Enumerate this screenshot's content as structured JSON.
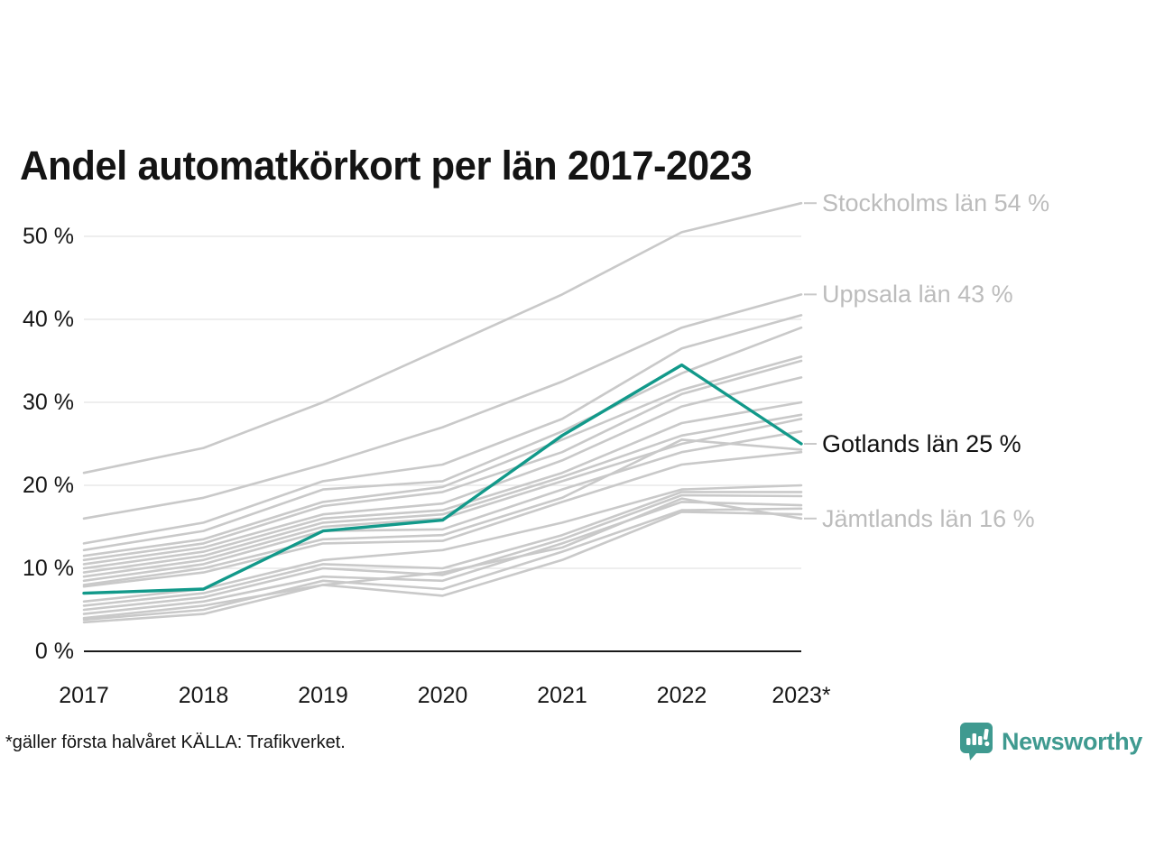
{
  "title": "Andel automatkörkort per län 2017-2023",
  "footer": {
    "note": "*gäller första halvåret KÄLLA: Trafikverket."
  },
  "branding": {
    "logo_text": "Newsworthy",
    "logo_icon": "newsworthy-speech-bubble-barchart-icon",
    "logo_color": "#3f9a90"
  },
  "colors": {
    "highlight_line": "#12998a",
    "gray_line": "#c9c9c9",
    "gridline": "#e8e8e8",
    "axis": "#1a1a1a",
    "annotation_gray": "#bcbcbc",
    "annotation_black": "#111111",
    "connector": "#c9c9c9"
  },
  "chart_data": {
    "type": "line",
    "title": "Andel automatkörkort per län 2017-2023",
    "xlabel": "",
    "ylabel": "",
    "x": [
      2017,
      2018,
      2019,
      2020,
      2021,
      2022,
      2023
    ],
    "x_tick_labels": [
      "2017",
      "2018",
      "2019",
      "2020",
      "2021",
      "2022",
      "2023*"
    ],
    "y_ticks": [
      0,
      10,
      20,
      30,
      40,
      50
    ],
    "y_tick_labels": [
      "0 %",
      "10 %",
      "20 %",
      "30 %",
      "40 %",
      "50 %"
    ],
    "ylim": [
      0,
      57
    ],
    "grid": "horizontal",
    "legend_position": "right-annotations",
    "unit": "%",
    "series": [
      {
        "name": "Stockholms län",
        "highlight": false,
        "values": [
          21.5,
          24.5,
          30,
          36.5,
          43,
          50.5,
          54
        ]
      },
      {
        "name": "Uppsala län",
        "highlight": false,
        "values": [
          16,
          18.5,
          22.5,
          27,
          32.5,
          39,
          43
        ]
      },
      {
        "name": "unlabeled-1",
        "highlight": false,
        "values": [
          13,
          15.5,
          20.5,
          22.5,
          28,
          36.5,
          40.5
        ]
      },
      {
        "name": "unlabeled-2",
        "highlight": false,
        "values": [
          12.2,
          14.5,
          19.5,
          20.5,
          26.5,
          33.5,
          39
        ]
      },
      {
        "name": "unlabeled-3",
        "highlight": false,
        "values": [
          11.5,
          13.5,
          18,
          19.8,
          25.5,
          31.5,
          35.5
        ]
      },
      {
        "name": "unlabeled-4",
        "highlight": false,
        "values": [
          11,
          13,
          17.5,
          19.2,
          24,
          31,
          35
        ]
      },
      {
        "name": "unlabeled-5",
        "highlight": false,
        "values": [
          10.5,
          12.5,
          16.5,
          17.8,
          23,
          29.5,
          33
        ]
      },
      {
        "name": "unlabeled-6",
        "highlight": false,
        "values": [
          10,
          12,
          16,
          17,
          21.5,
          27.5,
          30
        ]
      },
      {
        "name": "unlabeled-7",
        "highlight": false,
        "values": [
          9.5,
          11.5,
          15.5,
          16.5,
          21,
          26,
          28.5
        ]
      },
      {
        "name": "unlabeled-8",
        "highlight": false,
        "values": [
          9,
          11,
          15,
          16,
          20.5,
          25,
          28
        ]
      },
      {
        "name": "unlabeled-9",
        "highlight": false,
        "values": [
          8.5,
          10.5,
          14.5,
          14.7,
          19.5,
          24,
          26.5
        ]
      },
      {
        "name": "unlabeled-10",
        "highlight": false,
        "values": [
          8,
          10,
          13.5,
          14,
          18.5,
          25.5,
          24.3
        ]
      },
      {
        "name": "unlabeled-11",
        "highlight": false,
        "values": [
          7.8,
          9.5,
          13,
          13.3,
          18,
          22.5,
          24
        ]
      },
      {
        "name": "unlabeled-12",
        "highlight": false,
        "values": [
          6,
          7.5,
          11,
          12.2,
          15.5,
          19.5,
          20
        ]
      },
      {
        "name": "unlabeled-13",
        "highlight": false,
        "values": [
          5.5,
          7,
          10.5,
          10,
          14,
          19.2,
          19.2
        ]
      },
      {
        "name": "unlabeled-14",
        "highlight": false,
        "values": [
          5,
          6.5,
          10,
          9.2,
          13.5,
          18.8,
          18.7
        ]
      },
      {
        "name": "unlabeled-15",
        "highlight": false,
        "values": [
          4.5,
          6,
          9,
          8.5,
          13,
          18,
          17.6
        ]
      },
      {
        "name": "unlabeled-16",
        "highlight": false,
        "values": [
          3.8,
          5,
          8.5,
          7.5,
          12,
          17,
          17.2
        ]
      },
      {
        "name": "unlabeled-17",
        "highlight": false,
        "values": [
          3.5,
          4.5,
          8,
          6.7,
          11,
          16.8,
          16.5
        ]
      },
      {
        "name": "Jämtlands län",
        "highlight": false,
        "values": [
          4,
          5.5,
          8,
          9.5,
          12.5,
          18.4,
          16
        ]
      },
      {
        "name": "Gotlands län",
        "highlight": true,
        "values": [
          7,
          7.5,
          14.5,
          15.8,
          26,
          34.5,
          25
        ]
      }
    ],
    "annotations": [
      {
        "series": "Stockholms län",
        "label": "Stockholms län 54 %",
        "value": 54,
        "emphasis": false
      },
      {
        "series": "Uppsala län",
        "label": "Uppsala län 43 %",
        "value": 43,
        "emphasis": false
      },
      {
        "series": "Gotlands län",
        "label": "Gotlands län 25 %",
        "value": 25,
        "emphasis": true
      },
      {
        "series": "Jämtlands län",
        "label": "Jämtlands län 16 %",
        "value": 16,
        "emphasis": false
      }
    ]
  }
}
